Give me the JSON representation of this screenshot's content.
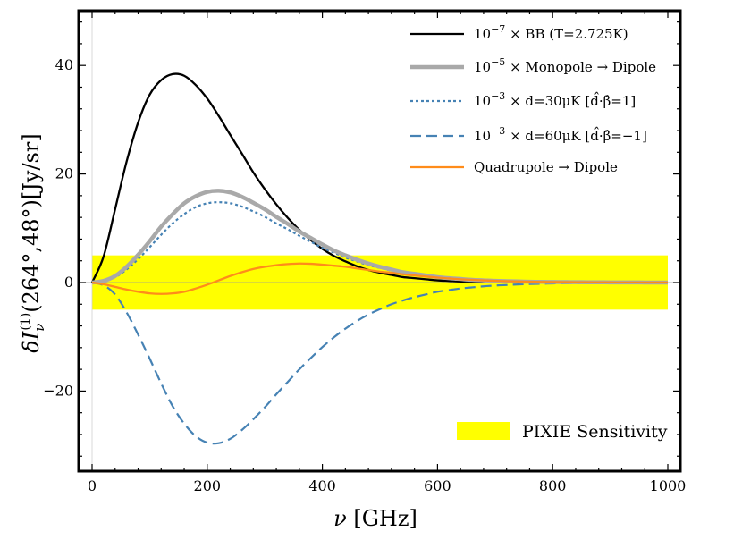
{
  "chart_data": {
    "type": "line",
    "xlabel_var": "ν",
    "xlabel_unit": " [GHz]",
    "ylabel_main": "δI",
    "ylabel_sub": "ν",
    "ylabel_sup": "(1)",
    "ylabel_rest": "(264°,48°)[Jy/sr]",
    "xlim": [
      0,
      1000
    ],
    "ylim": [
      -35,
      50
    ],
    "xticks": [
      0,
      200,
      400,
      600,
      800,
      1000
    ],
    "yticks": [
      -20,
      0,
      20,
      40
    ],
    "xtick_labels": [
      "0",
      "200",
      "400",
      "600",
      "800",
      "1000"
    ],
    "ytick_labels": [
      "−20",
      "0",
      "20",
      "40"
    ],
    "grid": false,
    "legend_position": "top-right",
    "sensitivity_band": {
      "label": "PIXIE Sensitivity",
      "y_range": [
        -5,
        5
      ],
      "color": "#ffff00"
    },
    "series": [
      {
        "legend": {
          "coef": "10",
          "exp": "−7",
          "text": " × BB (T=2.725K)"
        },
        "color": "#000000",
        "style": "solid",
        "x": [
          0,
          20,
          40,
          60,
          80,
          100,
          120,
          140,
          160,
          180,
          200,
          220,
          240,
          260,
          280,
          300,
          320,
          340,
          360,
          380,
          400,
          420,
          440,
          460,
          480,
          500,
          520,
          540,
          560,
          580,
          600,
          620,
          640,
          660,
          680,
          700,
          720,
          740,
          760,
          780,
          800,
          820,
          840,
          860,
          880,
          900,
          920,
          940,
          960,
          980,
          1000
        ],
        "y": [
          0,
          4.8,
          13.5,
          22.3,
          29.5,
          34.6,
          37.3,
          38.4,
          38.1,
          36.4,
          33.9,
          30.7,
          27.2,
          23.8,
          20.3,
          17.2,
          14.4,
          11.9,
          9.7,
          7.8,
          6.2,
          4.9,
          3.9,
          3.0,
          2.3,
          1.8,
          1.4,
          1.0,
          0.8,
          0.6,
          0.4,
          0.3,
          0.2,
          0.2,
          0.1,
          0.1,
          0.1,
          0.05,
          0.04,
          0.03,
          0.02,
          0.01,
          0.01,
          0.01,
          0,
          0,
          0,
          0,
          0,
          0,
          0
        ]
      },
      {
        "legend": {
          "coef": "10",
          "exp": "−5",
          "text": " × Monopole → Dipole"
        },
        "color": "#a9a9a9",
        "style": "thick",
        "x": [
          0,
          20,
          40,
          60,
          80,
          100,
          120,
          140,
          160,
          180,
          200,
          220,
          240,
          260,
          280,
          300,
          320,
          340,
          360,
          380,
          400,
          420,
          440,
          460,
          480,
          500,
          520,
          540,
          560,
          580,
          600,
          620,
          640,
          660,
          680,
          700,
          720,
          740,
          760,
          780,
          800,
          820,
          840,
          860,
          880,
          900,
          920,
          940,
          960,
          980,
          1000
        ],
        "y": [
          0,
          0.3,
          1.2,
          2.9,
          5.1,
          7.6,
          10.3,
          12.6,
          14.6,
          15.9,
          16.7,
          16.9,
          16.6,
          15.8,
          14.7,
          13.5,
          12.1,
          10.8,
          9.4,
          8.2,
          7.0,
          5.9,
          5.0,
          4.2,
          3.5,
          2.9,
          2.4,
          1.9,
          1.6,
          1.3,
          1.0,
          0.8,
          0.65,
          0.5,
          0.4,
          0.3,
          0.25,
          0.2,
          0.15,
          0.12,
          0.1,
          0.08,
          0.06,
          0.05,
          0.04,
          0.03,
          0.02,
          0.02,
          0.01,
          0.01,
          0.01
        ]
      },
      {
        "legend": {
          "coef": "10",
          "exp": "−3",
          "text": " × d=30μK [d̂·β̂=1]"
        },
        "color": "#4682b4",
        "style": "dotted",
        "x": [
          0,
          20,
          40,
          60,
          80,
          100,
          120,
          140,
          160,
          180,
          200,
          220,
          240,
          260,
          280,
          300,
          320,
          340,
          360,
          380,
          400,
          420,
          440,
          460,
          480,
          500,
          520,
          540,
          560,
          580,
          600,
          620,
          640,
          660,
          680,
          700,
          720,
          740,
          760,
          780,
          800,
          820,
          840,
          860,
          880,
          900,
          920,
          940,
          960,
          980,
          1000
        ],
        "y": [
          0,
          0.2,
          1.0,
          2.4,
          4.3,
          6.5,
          8.8,
          10.9,
          12.6,
          13.9,
          14.6,
          14.8,
          14.6,
          14.0,
          13.1,
          12.1,
          10.9,
          9.8,
          8.6,
          7.5,
          6.4,
          5.5,
          4.6,
          3.9,
          3.2,
          2.7,
          2.2,
          1.8,
          1.4,
          1.2,
          0.9,
          0.7,
          0.6,
          0.5,
          0.4,
          0.3,
          0.2,
          0.18,
          0.14,
          0.1,
          0.08,
          0.06,
          0.05,
          0.04,
          0.03,
          0.02,
          0.02,
          0.01,
          0.01,
          0.01,
          0.01
        ]
      },
      {
        "legend": {
          "coef": "10",
          "exp": "−3",
          "text": " × d=60μK [d̂·β̂=−1]"
        },
        "color": "#4682b4",
        "style": "dashed",
        "x": [
          0,
          20,
          40,
          60,
          80,
          100,
          120,
          140,
          160,
          180,
          200,
          220,
          240,
          260,
          280,
          300,
          320,
          340,
          360,
          380,
          400,
          420,
          440,
          460,
          480,
          500,
          520,
          540,
          560,
          580,
          600,
          620,
          640,
          660,
          680,
          700,
          720,
          740,
          760,
          780,
          800,
          820,
          840,
          860,
          880,
          900,
          920,
          940,
          960,
          980,
          1000
        ],
        "y": [
          0,
          -0.5,
          -2.2,
          -5.5,
          -9.6,
          -14.0,
          -18.6,
          -22.8,
          -26.0,
          -28.3,
          -29.5,
          -29.6,
          -28.8,
          -27.2,
          -25.2,
          -23.0,
          -20.6,
          -18.3,
          -16.0,
          -13.9,
          -11.9,
          -10.1,
          -8.5,
          -7.1,
          -5.9,
          -4.9,
          -4.0,
          -3.3,
          -2.7,
          -2.2,
          -1.7,
          -1.4,
          -1.1,
          -0.9,
          -0.7,
          -0.55,
          -0.45,
          -0.35,
          -0.28,
          -0.22,
          -0.17,
          -0.13,
          -0.1,
          -0.08,
          -0.06,
          -0.05,
          -0.04,
          -0.03,
          -0.02,
          -0.02,
          -0.01
        ]
      },
      {
        "legend": {
          "coef": "",
          "exp": "",
          "text": "Quadrupole → Dipole"
        },
        "color": "#ff8c1a",
        "style": "solid",
        "x": [
          0,
          20,
          40,
          60,
          80,
          100,
          120,
          140,
          160,
          180,
          200,
          220,
          240,
          260,
          280,
          300,
          320,
          340,
          360,
          380,
          400,
          420,
          440,
          460,
          480,
          500,
          520,
          540,
          560,
          580,
          600,
          620,
          640,
          660,
          680,
          700,
          720,
          740,
          760,
          780,
          800,
          820,
          840,
          860,
          880,
          900,
          920,
          940,
          960,
          980,
          1000
        ],
        "y": [
          0,
          -0.3,
          -0.8,
          -1.3,
          -1.7,
          -2.0,
          -2.1,
          -2.0,
          -1.7,
          -1.1,
          -0.4,
          0.4,
          1.2,
          1.9,
          2.5,
          2.9,
          3.2,
          3.4,
          3.5,
          3.45,
          3.3,
          3.1,
          2.9,
          2.6,
          2.3,
          2.0,
          1.8,
          1.5,
          1.3,
          1.1,
          0.9,
          0.75,
          0.6,
          0.5,
          0.4,
          0.32,
          0.26,
          0.2,
          0.16,
          0.12,
          0.1,
          0.08,
          0.06,
          0.05,
          0.04,
          0.03,
          0.02,
          0.02,
          0.01,
          0.01,
          0.01
        ]
      }
    ]
  }
}
